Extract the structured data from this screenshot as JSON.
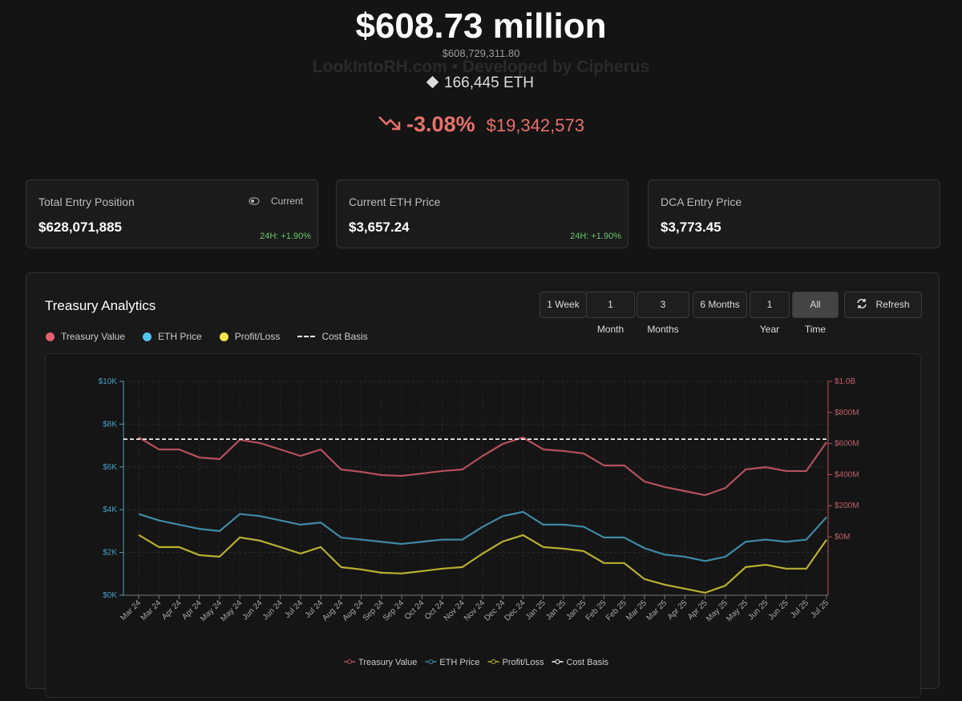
{
  "header": {
    "value_title": "$608.73 million",
    "exact_value": "$608,729,311.80",
    "watermark": "LookIntoRH.com • Developed by Cipherus",
    "eth_holdings": "166,445 ETH",
    "change_pct": "-3.08%",
    "change_usd": "$19,342,573"
  },
  "cards": [
    {
      "title": "Total Entry Position",
      "toggle": "Current",
      "value": "$628,071,885",
      "change": "24H: +1.90%"
    },
    {
      "title": "Current ETH Price",
      "value": "$3,657.24",
      "change": "24H: +1.90%"
    },
    {
      "title": "DCA Entry Price",
      "value": "$3,773.45"
    }
  ],
  "panel": {
    "title": "Treasury Analytics",
    "range_buttons": [
      "1 Week",
      "1 Month",
      "3 Months",
      "6 Months",
      "1 Year",
      "All Time"
    ],
    "refresh": "Refresh"
  },
  "chart_data": {
    "type": "line",
    "categories": [
      "Mar 24",
      "Mar 24",
      "Apr 24",
      "Apr 24",
      "May 24",
      "May 24",
      "Jun 24",
      "Jun 24",
      "Jul 24",
      "Jul 24",
      "Aug 24",
      "Aug 24",
      "Sep 24",
      "Sep 24",
      "Oct 24",
      "Oct 24",
      "Nov 24",
      "Nov 24",
      "Dec 24",
      "Dec 24",
      "Jan 25",
      "Jan 25",
      "Jan 25",
      "Feb 25",
      "Feb 25",
      "Mar 25",
      "Mar 25",
      "Apr 25",
      "Apr 25",
      "May 25",
      "May 25",
      "Jun 25",
      "Jun 25",
      "Jul 25",
      "Jul 25"
    ],
    "series": [
      {
        "name": "Treasury Value",
        "color": "#b5505c",
        "legend_color": "#e25f6e",
        "axis": "y2",
        "values": [
          640000000,
          562000000,
          562000000,
          510000000,
          500000000,
          624000000,
          603000000,
          562000000,
          520000000,
          562000000,
          433000000,
          418000000,
          397000000,
          392000000,
          407000000,
          423000000,
          433000000,
          520000000,
          598000000,
          639000000,
          562000000,
          552000000,
          536000000,
          459000000,
          459000000,
          356000000,
          320000000,
          294000000,
          268000000,
          314000000,
          433000000,
          448000000,
          423000000,
          423000000,
          609000000
        ]
      },
      {
        "name": "ETH Price",
        "color": "#3f8aa6",
        "legend_color": "#53c4ea",
        "values": [
          3800,
          3500,
          3300,
          3100,
          3000,
          3800,
          3700,
          3500,
          3300,
          3400,
          2700,
          2600,
          2500,
          2400,
          2500,
          2600,
          2600,
          3200,
          3700,
          3900,
          3300,
          3300,
          3200,
          2700,
          2700,
          2200,
          1900,
          1800,
          1600,
          1800,
          2500,
          2600,
          2500,
          2600,
          3650
        ]
      },
      {
        "name": "Profit/Loss",
        "color": "#b8b030",
        "legend_color": "#f2e547",
        "axis": "y2",
        "values": [
          12000000,
          -66000000,
          -66000000,
          -118000000,
          -128000000,
          -4000000,
          -25000000,
          -66000000,
          -108000000,
          -66000000,
          -195000000,
          -210000000,
          -231000000,
          -236000000,
          -221000000,
          -205000000,
          -195000000,
          -108000000,
          -30000000,
          11000000,
          -66000000,
          -76000000,
          -92000000,
          -169000000,
          -169000000,
          -272000000,
          -308000000,
          -334000000,
          -360000000,
          -314000000,
          -195000000,
          -180000000,
          -205000000,
          -205000000,
          -19000000
        ]
      }
    ],
    "cost_basis": {
      "name": "Cost Basis",
      "color": "#ffffff",
      "value": 628071885,
      "axis": "y2"
    },
    "ylim": [
      0,
      10000
    ],
    "yticks": [
      {
        "value": 0,
        "label": "$0K"
      },
      {
        "value": 2000,
        "label": "$2K"
      },
      {
        "value": 4000,
        "label": "$4K"
      },
      {
        "value": 6000,
        "label": "$6K"
      },
      {
        "value": 8000,
        "label": "$8K"
      },
      {
        "value": 10000,
        "label": "$10K"
      }
    ],
    "y2lim": [
      -376000000,
      1000000000
    ],
    "y2ticks": [
      {
        "value": 0,
        "label": "$0M"
      },
      {
        "value": 200000000,
        "label": "$200M"
      },
      {
        "value": 400000000,
        "label": "$400M"
      },
      {
        "value": 600000000,
        "label": "$600M"
      },
      {
        "value": 800000000,
        "label": "$800M"
      },
      {
        "value": 1000000000,
        "label": "$1.0B"
      }
    ],
    "grid": true
  }
}
